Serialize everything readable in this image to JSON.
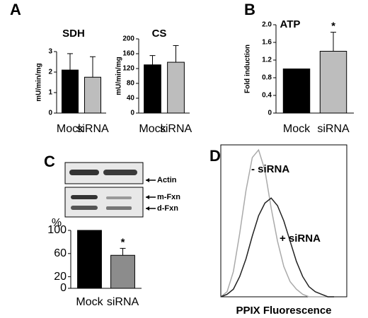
{
  "chart_data": [
    {
      "type": "bar",
      "panel": "A",
      "title": "SDH",
      "ylabel": "mU/min/mg",
      "categories": [
        "Mock",
        "siRNA"
      ],
      "values": [
        2.1,
        1.75
      ],
      "errors": [
        0.8,
        1.0
      ],
      "colors": [
        "#000000",
        "#bdbdbd"
      ],
      "ylim": [
        0,
        3
      ],
      "yticks": [
        0,
        1,
        2,
        3
      ]
    },
    {
      "type": "bar",
      "title": "CS",
      "ylabel": "mU/min/mg",
      "categories": [
        "Mock",
        "siRNA"
      ],
      "values": [
        130,
        137
      ],
      "errors": [
        25,
        45
      ],
      "colors": [
        "#000000",
        "#bdbdbd"
      ],
      "ylim": [
        0,
        200
      ],
      "yticks": [
        0,
        40,
        80,
        120,
        160,
        200
      ]
    },
    {
      "type": "bar",
      "panel": "B",
      "title": "ATP",
      "ylabel": "Fold induction",
      "categories": [
        "Mock",
        "siRNA"
      ],
      "values": [
        1.0,
        1.4
      ],
      "errors": [
        0,
        0.43
      ],
      "colors": [
        "#000000",
        "#bdbdbd"
      ],
      "ylim": [
        0,
        2
      ],
      "yticks": [
        0,
        0.4,
        0.8,
        1.2,
        1.6,
        {
          "value": 2,
          "label": "2.0"
        }
      ],
      "annotation": "*"
    },
    {
      "type": "bar",
      "panel": "C",
      "ylabel": "%",
      "categories": [
        "Mock",
        "siRNA"
      ],
      "values": [
        100,
        57
      ],
      "errors": [
        0,
        12
      ],
      "colors": [
        "#000000",
        "#8c8c8c"
      ],
      "ylim": [
        0,
        100
      ],
      "yticks": [
        0,
        20,
        60,
        100
      ],
      "annotation": "*",
      "blot_labels": [
        "Actin",
        "m-Fxn",
        "d-Fxn"
      ]
    },
    {
      "type": "line",
      "panel": "D",
      "xlabel": "PPIX Fluorescence",
      "x": [
        0,
        2,
        4,
        6,
        8,
        10,
        12,
        14,
        16,
        18,
        20,
        22,
        24,
        26,
        28,
        30,
        32,
        34,
        36
      ],
      "xlim": [
        0,
        40
      ],
      "ylim": [
        0,
        60
      ],
      "series": [
        {
          "name": "- siRNA",
          "color": "#aaaaaa",
          "values": [
            0,
            2,
            10,
            25,
            42,
            55,
            58,
            50,
            35,
            22,
            12,
            6,
            3,
            1,
            0,
            0,
            0,
            0,
            0
          ]
        },
        {
          "name": "+ siRNA",
          "color": "#222222",
          "values": [
            0,
            1,
            3,
            8,
            15,
            24,
            32,
            37,
            39,
            36,
            30,
            22,
            14,
            8,
            4,
            2,
            1,
            0,
            0
          ]
        }
      ]
    }
  ]
}
